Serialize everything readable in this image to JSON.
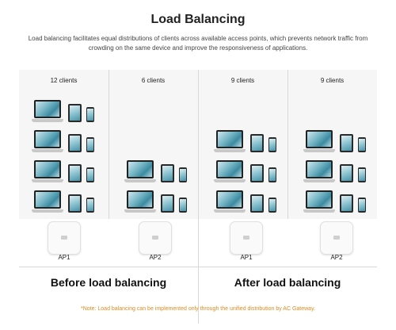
{
  "title": "Load Balancing",
  "description": "Load balancing facilitates equal distributions of clients across available access points, which prevents network traffic from crowding on the same device and improve the responsiveness of applications.",
  "columns": [
    {
      "label": "12 clients",
      "rows": 4
    },
    {
      "label": "6 clients",
      "rows": 2
    },
    {
      "label": "9 clients",
      "rows": 3
    },
    {
      "label": "9 clients",
      "rows": 3
    }
  ],
  "access_points": [
    {
      "label": "AP1"
    },
    {
      "label": "AP2"
    },
    {
      "label": "AP1"
    },
    {
      "label": "AP2"
    }
  ],
  "sections": {
    "before": "Before load balancing",
    "after": "After load balancing"
  },
  "note": "*Note: Load balancing can be implemented only through the unified distribution by AC Gateway."
}
